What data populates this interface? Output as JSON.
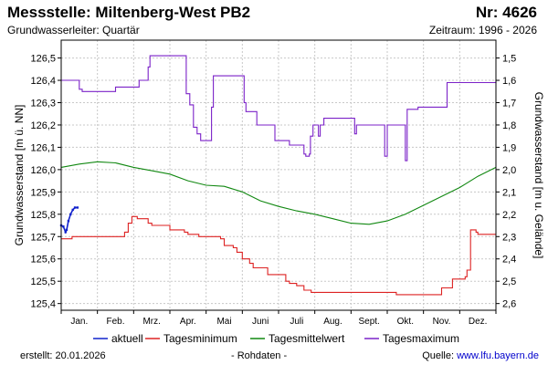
{
  "header": {
    "title": "Messstelle: Miltenberg-West PB2",
    "number": "Nr: 4626",
    "aquifer": "Grundwasserleiter: Quartär",
    "period": "Zeitraum: 1996 - 2026"
  },
  "footer": {
    "created_label": "erstellt:",
    "created_date": "20.01.2026",
    "rawdata": "- Rohdaten -",
    "source_label": "Quelle:",
    "source_url": "www.lfu.bayern.de"
  },
  "chart_data": {
    "type": "line",
    "xlabel": "",
    "ylabel_left": "Grundwasserstand [m ü. NN]",
    "ylabel_right": "Grundwasserstand [m u. Gelände]",
    "x_unit": "month",
    "xlim": [
      0,
      12
    ],
    "ylim": [
      125.37,
      126.58
    ],
    "grid": true,
    "legend_position": "bottom",
    "reference_offset_m": 128.0,
    "yticks_left": [
      {
        "value": 125.4,
        "label": "125,4"
      },
      {
        "value": 125.5,
        "label": "125,5"
      },
      {
        "value": 125.6,
        "label": "125,6"
      },
      {
        "value": 125.7,
        "label": "125,7"
      },
      {
        "value": 125.8,
        "label": "125,8"
      },
      {
        "value": 125.9,
        "label": "125,9"
      },
      {
        "value": 126.0,
        "label": "126,0"
      },
      {
        "value": 126.1,
        "label": "126,1"
      },
      {
        "value": 126.2,
        "label": "126,2"
      },
      {
        "value": 126.3,
        "label": "126,3"
      },
      {
        "value": 126.4,
        "label": "126,4"
      },
      {
        "value": 126.5,
        "label": "126,5"
      }
    ],
    "yticks_right": [
      {
        "value": 126.5,
        "label": "1,5"
      },
      {
        "value": 126.4,
        "label": "1,6"
      },
      {
        "value": 126.3,
        "label": "1,7"
      },
      {
        "value": 126.2,
        "label": "1,8"
      },
      {
        "value": 126.1,
        "label": "1,9"
      },
      {
        "value": 126.0,
        "label": "2,0"
      },
      {
        "value": 125.9,
        "label": "2,1"
      },
      {
        "value": 125.8,
        "label": "2,2"
      },
      {
        "value": 125.7,
        "label": "2,3"
      },
      {
        "value": 125.6,
        "label": "2,4"
      },
      {
        "value": 125.5,
        "label": "2,5"
      },
      {
        "value": 125.4,
        "label": "2,6"
      }
    ],
    "months": [
      "Jan.",
      "Feb.",
      "Mrz.",
      "Apr.",
      "Mai",
      "Juni",
      "Juli",
      "Aug.",
      "Sept.",
      "Okt.",
      "Nov.",
      "Dez."
    ],
    "series": [
      {
        "name": "Tagesmaximum",
        "color": "#7b22c8",
        "step": true,
        "x": [
          0,
          0.45,
          0.5,
          0.58,
          1.45,
          1.5,
          2.1,
          2.15,
          2.4,
          2.45,
          3.35,
          3.45,
          3.55,
          3.65,
          3.75,
          3.85,
          3.9,
          4.1,
          4.15,
          4.2,
          4.35,
          4.45,
          4.95,
          5.05,
          5.1,
          5.3,
          5.4,
          5.5,
          5.75,
          5.9,
          6.2,
          6.3,
          6.55,
          6.7,
          6.75,
          6.85,
          6.88,
          6.95,
          7.0,
          7.1,
          7.15,
          7.25,
          7.35,
          8.05,
          8.1,
          8.15,
          8.2,
          8.9,
          8.93,
          9.0,
          9.45,
          9.5,
          9.55,
          9.8,
          9.85,
          10.6,
          10.65,
          11.8,
          12
        ],
        "values": [
          126.4,
          126.4,
          126.36,
          126.35,
          126.35,
          126.37,
          126.37,
          126.4,
          126.46,
          126.51,
          126.51,
          126.34,
          126.29,
          126.19,
          126.16,
          126.13,
          126.13,
          126.13,
          126.28,
          126.42,
          126.42,
          126.42,
          126.42,
          126.3,
          126.26,
          126.26,
          126.2,
          126.2,
          126.2,
          126.13,
          126.13,
          126.11,
          126.11,
          126.07,
          126.06,
          126.07,
          126.15,
          126.2,
          126.2,
          126.15,
          126.2,
          126.23,
          126.23,
          126.23,
          126.16,
          126.2,
          126.2,
          126.2,
          126.06,
          126.2,
          126.2,
          126.04,
          126.27,
          126.27,
          126.28,
          126.28,
          126.39,
          126.39,
          126.4
        ]
      },
      {
        "name": "Tagesmittelwert",
        "color": "#118811",
        "step": false,
        "x": [
          0,
          0.5,
          1.0,
          1.5,
          2.0,
          2.5,
          3.0,
          3.5,
          4.0,
          4.5,
          5.0,
          5.5,
          6.0,
          6.5,
          7.0,
          7.5,
          8.0,
          8.5,
          9.0,
          9.5,
          10.0,
          10.5,
          11.0,
          11.5,
          12.0
        ],
        "values": [
          126.01,
          126.025,
          126.035,
          126.03,
          126.01,
          125.995,
          125.98,
          125.95,
          125.93,
          125.925,
          125.9,
          125.86,
          125.835,
          125.815,
          125.8,
          125.78,
          125.76,
          125.755,
          125.77,
          125.8,
          125.84,
          125.88,
          125.92,
          125.97,
          126.01
        ]
      },
      {
        "name": "Tagesminimum",
        "color": "#dd2222",
        "step": true,
        "x": [
          0,
          0.15,
          0.3,
          1.7,
          1.75,
          1.85,
          1.95,
          2.0,
          2.1,
          2.4,
          2.5,
          3.0,
          3.2,
          3.4,
          3.5,
          3.8,
          4.4,
          4.5,
          4.75,
          4.85,
          5.0,
          5.2,
          5.3,
          5.5,
          5.7,
          6.2,
          6.3,
          6.5,
          6.7,
          6.9,
          7.1,
          7.35,
          7.5,
          9.2,
          9.25,
          9.3,
          9.5,
          10.35,
          10.5,
          10.8,
          10.9,
          11.15,
          11.2,
          11.3,
          11.45,
          11.5,
          12
        ],
        "values": [
          125.69,
          125.69,
          125.7,
          125.7,
          125.72,
          125.76,
          125.79,
          125.79,
          125.78,
          125.76,
          125.75,
          125.73,
          125.73,
          125.72,
          125.71,
          125.7,
          125.69,
          125.66,
          125.65,
          125.63,
          125.6,
          125.58,
          125.56,
          125.56,
          125.53,
          125.5,
          125.49,
          125.48,
          125.46,
          125.45,
          125.45,
          125.45,
          125.45,
          125.45,
          125.44,
          125.44,
          125.44,
          125.44,
          125.47,
          125.51,
          125.51,
          125.52,
          125.55,
          125.73,
          125.72,
          125.71,
          125.71
        ]
      },
      {
        "name": "aktuell",
        "color": "#1122cc",
        "step": false,
        "x": [
          0,
          0.06,
          0.12,
          0.15,
          0.2,
          0.26,
          0.32,
          0.38,
          0.45
        ],
        "values": [
          125.75,
          125.745,
          125.72,
          125.73,
          125.77,
          125.8,
          125.82,
          125.83,
          125.83
        ]
      }
    ],
    "legend_order": [
      "aktuell",
      "Tagesminimum",
      "Tagesmittelwert",
      "Tagesmaximum"
    ],
    "colors": {
      "axis": "#000000",
      "grid": "#c8c8c8"
    }
  }
}
